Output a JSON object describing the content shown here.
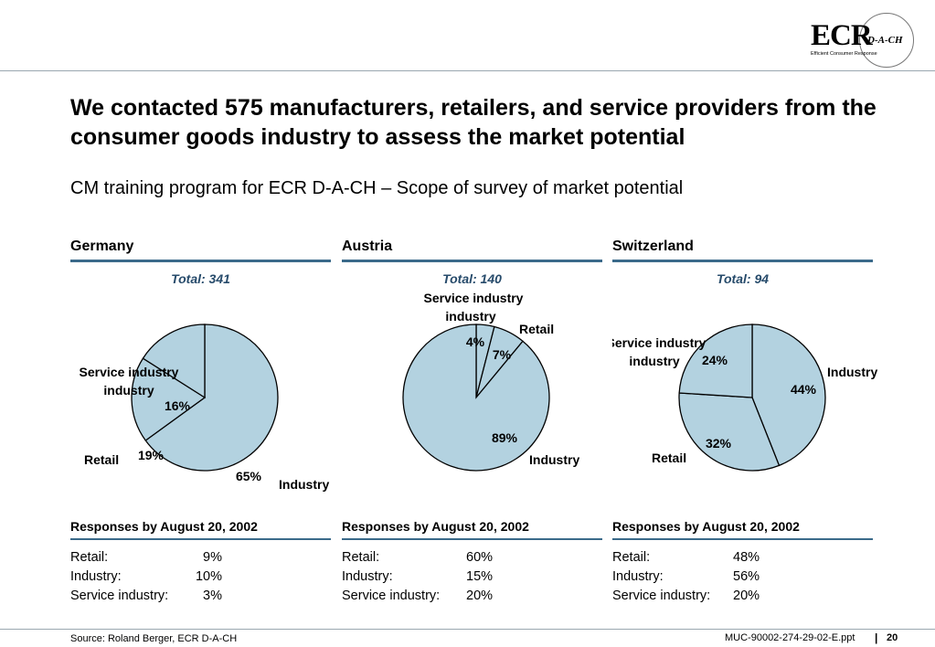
{
  "logo": {
    "main": "ECR",
    "suffix": "D-A-CH",
    "subtitle": "Efficient Consumer Response"
  },
  "title": "We contacted 575 manufacturers, retailers, and service providers from the consumer goods industry to assess the market potential",
  "subtitle": "CM training program for ECR D-A-CH – Scope of survey of market potential",
  "colors": {
    "slice_fill": "#b3d2e0",
    "rule": "#3b6a8a",
    "total_text": "#274b6b"
  },
  "countries": [
    {
      "name": "Germany",
      "total": "Total: 341",
      "chart_data": {
        "type": "pie",
        "labels": [
          "Industry",
          "Retail",
          "Service industry"
        ],
        "values": [
          65,
          19,
          16
        ],
        "value_labels": [
          "65%",
          "19%",
          "16%"
        ]
      },
      "responses_title": "Responses by August 20, 2002",
      "responses": [
        {
          "label": "Retail:",
          "value": "9%"
        },
        {
          "label": "Industry:",
          "value": "10%"
        },
        {
          "label": "Service industry:",
          "value": "3%"
        }
      ]
    },
    {
      "name": "Austria",
      "total": "Total: 140",
      "chart_data": {
        "type": "pie",
        "labels": [
          "Service industry",
          "Retail",
          "Industry"
        ],
        "values": [
          4,
          7,
          89
        ],
        "value_labels": [
          "4%",
          "7%",
          "89%"
        ]
      },
      "responses_title": "Responses by August 20, 2002",
      "responses": [
        {
          "label": "Retail:",
          "value": "60%"
        },
        {
          "label": "Industry:",
          "value": "15%"
        },
        {
          "label": "Service industry:",
          "value": "20%"
        }
      ]
    },
    {
      "name": "Switzerland",
      "total": "Total: 94",
      "chart_data": {
        "type": "pie",
        "labels": [
          "Industry",
          "Retail",
          "Service industry"
        ],
        "values": [
          44,
          32,
          24
        ],
        "value_labels": [
          "44%",
          "32%",
          "24%"
        ]
      },
      "responses_title": "Responses by August 20, 2002",
      "responses": [
        {
          "label": "Retail:",
          "value": "48%"
        },
        {
          "label": "Industry:",
          "value": "56%"
        },
        {
          "label": "Service industry:",
          "value": "20%"
        }
      ]
    }
  ],
  "footer": {
    "source": "Source: Roland Berger, ECR D-A-CH",
    "reference": "MUC-90002-274-29-02-E.ppt",
    "separator": "|",
    "page": "20"
  }
}
